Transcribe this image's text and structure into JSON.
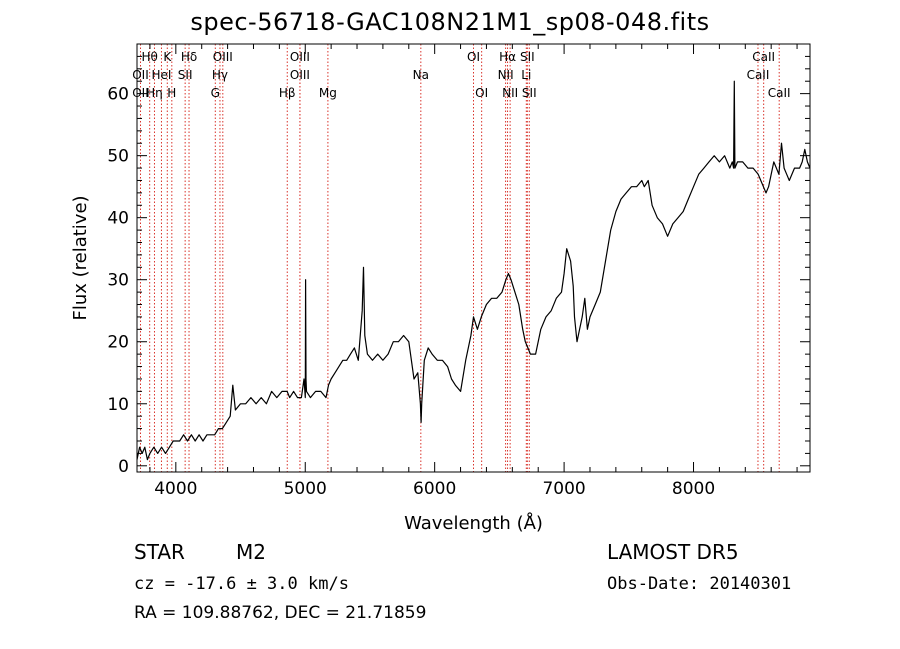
{
  "title": "spec-56718-GAC108N21M1_sp08-048.fits",
  "info": {
    "class": "STAR",
    "subclass": "M2",
    "survey": "LAMOST DR5",
    "cz": "cz = -17.6 ± 3.0 km/s",
    "obs_date": "Obs-Date: 20140301",
    "radec": "RA = 109.88762, DEC =  21.71859"
  },
  "chart_data": {
    "type": "line",
    "title": "spec-56718-GAC108N21M1_sp08-048.fits",
    "xlabel": "Wavelength (Å)",
    "ylabel": "Flux (relative)",
    "xlim": [
      3700,
      8900
    ],
    "ylim": [
      -1,
      68
    ],
    "xticks": [
      4000,
      5000,
      6000,
      7000,
      8000
    ],
    "yticks": [
      0,
      10,
      20,
      30,
      40,
      50,
      60
    ],
    "grid": false,
    "series": [
      {
        "x": [
          3700,
          3720,
          3740,
          3760,
          3780,
          3800,
          3830,
          3860,
          3890,
          3920,
          3950,
          3980,
          4000,
          4030,
          4060,
          4090,
          4120,
          4150,
          4180,
          4210,
          4240,
          4270,
          4300,
          4330,
          4360,
          4390,
          4420,
          4440,
          4460,
          4500,
          4540,
          4580,
          4620,
          4660,
          4700,
          4740,
          4780,
          4820,
          4860,
          4880,
          4910,
          4940,
          4970,
          4990,
          5000,
          5003,
          5006,
          5010,
          5040,
          5080,
          5120,
          5160,
          5180,
          5200,
          5230,
          5260,
          5290,
          5320,
          5350,
          5380,
          5410,
          5440,
          5450,
          5460,
          5480,
          5520,
          5560,
          5600,
          5640,
          5680,
          5720,
          5760,
          5800,
          5840,
          5870,
          5890,
          5895,
          5900,
          5920,
          5950,
          5980,
          6020,
          6060,
          6100,
          6130,
          6160,
          6200,
          6240,
          6280,
          6300,
          6330,
          6360,
          6400,
          6440,
          6480,
          6520,
          6550,
          6570,
          6590,
          6620,
          6650,
          6680,
          6700,
          6720,
          6740,
          6780,
          6820,
          6860,
          6900,
          6940,
          6980,
          7000,
          7020,
          7050,
          7070,
          7080,
          7100,
          7120,
          7140,
          7160,
          7180,
          7200,
          7240,
          7280,
          7320,
          7360,
          7400,
          7440,
          7480,
          7520,
          7560,
          7600,
          7620,
          7650,
          7680,
          7720,
          7760,
          7800,
          7840,
          7880,
          7920,
          7960,
          8000,
          8040,
          8080,
          8120,
          8160,
          8200,
          8240,
          8280,
          8300,
          8310,
          8315,
          8320,
          8340,
          8380,
          8420,
          8460,
          8500,
          8520,
          8540,
          8560,
          8580,
          8600,
          8620,
          8640,
          8660,
          8680,
          8700,
          8720,
          8740,
          8780,
          8820,
          8840,
          8860,
          8880,
          8900
        ],
        "values": [
          1,
          3,
          2,
          3,
          1,
          2,
          3,
          2,
          3,
          2,
          3,
          4,
          4,
          4,
          5,
          4,
          5,
          4,
          5,
          4,
          5,
          5,
          5,
          6,
          6,
          7,
          8,
          13,
          9,
          10,
          10,
          11,
          10,
          11,
          10,
          12,
          11,
          12,
          12,
          11,
          12,
          11,
          11,
          14,
          11,
          30,
          14,
          12,
          11,
          12,
          12,
          11,
          13,
          14,
          15,
          16,
          17,
          17,
          18,
          19,
          17,
          25,
          32,
          21,
          18,
          17,
          18,
          17,
          18,
          20,
          20,
          21,
          20,
          14,
          15,
          10,
          7,
          10,
          17,
          19,
          18,
          17,
          17,
          16,
          14,
          13,
          12,
          17,
          21,
          24,
          22,
          24,
          26,
          27,
          27,
          28,
          30,
          31,
          30,
          28,
          26,
          22,
          20,
          19,
          18,
          18,
          22,
          24,
          25,
          27,
          28,
          31,
          35,
          33,
          29,
          24,
          20,
          22,
          24,
          27,
          22,
          24,
          26,
          28,
          33,
          38,
          41,
          43,
          44,
          45,
          45,
          46,
          45,
          46,
          42,
          40,
          39,
          37,
          39,
          40,
          41,
          43,
          45,
          47,
          48,
          49,
          50,
          49,
          50,
          48,
          49,
          48,
          62,
          48,
          49,
          49,
          48,
          48,
          47,
          46,
          45,
          44,
          45,
          47,
          49,
          48,
          47,
          52,
          48,
          47,
          46,
          48,
          48,
          49,
          51,
          49,
          48
        ]
      }
    ],
    "lines": [
      {
        "label": "Hθ",
        "x": 3798,
        "row": 0
      },
      {
        "label": "OII",
        "x": 3727,
        "row": 1
      },
      {
        "label": "OII",
        "x": 3727,
        "row": 2
      },
      {
        "label": "Hη",
        "x": 3835,
        "row": 2
      },
      {
        "label": "HeI",
        "x": 3889,
        "row": 1
      },
      {
        "label": "K",
        "x": 3934,
        "row": 0
      },
      {
        "label": "H",
        "x": 3969,
        "row": 2
      },
      {
        "label": "Hδ",
        "x": 4102,
        "row": 0
      },
      {
        "label": "SII",
        "x": 4072,
        "row": 1
      },
      {
        "label": "OIII",
        "x": 4363,
        "row": 0
      },
      {
        "label": "Hγ",
        "x": 4341,
        "row": 1
      },
      {
        "label": "G",
        "x": 4305,
        "row": 2
      },
      {
        "label": "OIII",
        "x": 4959,
        "row": 0
      },
      {
        "label": "OIII",
        "x": 4959,
        "row": 1
      },
      {
        "label": "Hβ",
        "x": 4861,
        "row": 2
      },
      {
        "label": "Mg",
        "x": 5175,
        "row": 2
      },
      {
        "label": "Na",
        "x": 5893,
        "row": 1
      },
      {
        "label": "OI",
        "x": 6300,
        "row": 0
      },
      {
        "label": "OI",
        "x": 6363,
        "row": 2
      },
      {
        "label": "Hα",
        "x": 6563,
        "row": 0
      },
      {
        "label": "NII",
        "x": 6548,
        "row": 1
      },
      {
        "label": "NII",
        "x": 6583,
        "row": 2
      },
      {
        "label": "SII",
        "x": 6716,
        "row": 0
      },
      {
        "label": "Li",
        "x": 6708,
        "row": 1
      },
      {
        "label": "SII",
        "x": 6731,
        "row": 2
      },
      {
        "label": "CaII",
        "x": 8542,
        "row": 0
      },
      {
        "label": "CaII",
        "x": 8498,
        "row": 1
      },
      {
        "label": "CaII",
        "x": 8662,
        "row": 2
      }
    ]
  }
}
